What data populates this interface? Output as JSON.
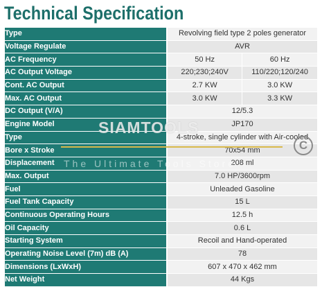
{
  "title": "Technical Specification",
  "watermark": {
    "brand": "SIAMTOOLS",
    "tagline": "The Ultimate Tools Store",
    "copyright_symbol": "C"
  },
  "rows": [
    {
      "label": "Type",
      "values": [
        "Revolving field type 2 poles generator"
      ]
    },
    {
      "label": "Voltage Regulate",
      "values": [
        "AVR"
      ]
    },
    {
      "label": "AC Frequency",
      "values": [
        "50 Hz",
        "60 Hz"
      ]
    },
    {
      "label": "AC Output Voltage",
      "values": [
        "220;230;240V",
        "110/220;120/240"
      ]
    },
    {
      "label": "Cont. AC Output",
      "values": [
        "2.7 KW",
        "3.0 KW"
      ]
    },
    {
      "label": "Max. AC Output",
      "values": [
        "3.0 KW",
        "3.3 KW"
      ]
    },
    {
      "label": "DC Output (V/A)",
      "values": [
        "12/5.3"
      ]
    },
    {
      "label": "Engine Model",
      "values": [
        "JP170"
      ]
    },
    {
      "label": "Type",
      "values": [
        "4-stroke, single cylinder with Air-cooled"
      ]
    },
    {
      "label": "Bore x Stroke",
      "values": [
        "70x54 mm"
      ]
    },
    {
      "label": "Displacement",
      "values": [
        "208 ml"
      ]
    },
    {
      "label": "Max. Output",
      "values": [
        "7.0 HP/3600rpm"
      ]
    },
    {
      "label": "Fuel",
      "values": [
        "Unleaded Gasoline"
      ]
    },
    {
      "label": "Fuel Tank Capacity",
      "values": [
        "15 L"
      ]
    },
    {
      "label": "Continuous Operating Hours",
      "values": [
        "12.5 h"
      ]
    },
    {
      "label": "Oil Capacity",
      "values": [
        "0.6 L"
      ]
    },
    {
      "label": "Starting System",
      "values": [
        "Recoil and Hand-operated"
      ]
    },
    {
      "label": "Operating Noise Level (7m) dB (A)",
      "values": [
        "78"
      ]
    },
    {
      "label": "Dimensions (LxWxH)",
      "values": [
        "607 x 470 x 462 mm"
      ]
    },
    {
      "label": "Net Weight",
      "values": [
        "44 Kgs"
      ]
    }
  ]
}
